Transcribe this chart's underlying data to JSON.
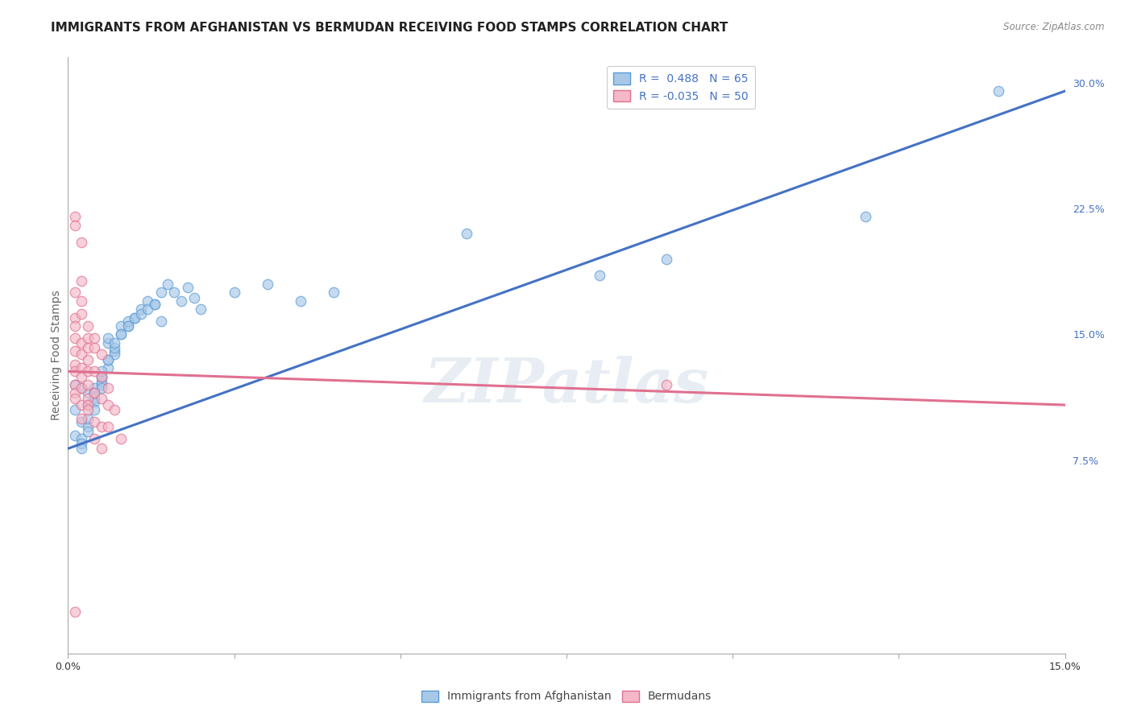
{
  "title": "IMMIGRANTS FROM AFGHANISTAN VS BERMUDAN RECEIVING FOOD STAMPS CORRELATION CHART",
  "source": "Source: ZipAtlas.com",
  "ylabel": "Receiving Food Stamps",
  "xlim": [
    0.0,
    0.15
  ],
  "ylim": [
    -0.04,
    0.315
  ],
  "legend_entries": [
    {
      "label": "R =  0.488   N = 65",
      "facecolor": "#a8c8e8",
      "edgecolor": "#5b9bd5"
    },
    {
      "label": "R = -0.035   N = 50",
      "facecolor": "#f4b8c8",
      "edgecolor": "#e07090"
    }
  ],
  "afghanistan_x": [
    0.001,
    0.002,
    0.001,
    0.003,
    0.002,
    0.004,
    0.001,
    0.003,
    0.002,
    0.005,
    0.003,
    0.004,
    0.002,
    0.006,
    0.004,
    0.003,
    0.005,
    0.002,
    0.007,
    0.004,
    0.005,
    0.003,
    0.006,
    0.004,
    0.008,
    0.005,
    0.006,
    0.007,
    0.004,
    0.009,
    0.005,
    0.006,
    0.01,
    0.007,
    0.008,
    0.005,
    0.011,
    0.006,
    0.009,
    0.007,
    0.012,
    0.008,
    0.013,
    0.009,
    0.01,
    0.014,
    0.011,
    0.015,
    0.012,
    0.016,
    0.013,
    0.017,
    0.018,
    0.014,
    0.019,
    0.02,
    0.025,
    0.03,
    0.035,
    0.04,
    0.06,
    0.08,
    0.09,
    0.12,
    0.14
  ],
  "afghanistan_y": [
    0.12,
    0.118,
    0.105,
    0.115,
    0.098,
    0.112,
    0.09,
    0.095,
    0.088,
    0.125,
    0.108,
    0.115,
    0.085,
    0.13,
    0.118,
    0.1,
    0.122,
    0.082,
    0.14,
    0.11,
    0.12,
    0.092,
    0.135,
    0.105,
    0.15,
    0.125,
    0.145,
    0.138,
    0.115,
    0.155,
    0.128,
    0.148,
    0.16,
    0.142,
    0.155,
    0.118,
    0.165,
    0.135,
    0.158,
    0.145,
    0.17,
    0.15,
    0.168,
    0.155,
    0.16,
    0.175,
    0.162,
    0.18,
    0.165,
    0.175,
    0.168,
    0.17,
    0.178,
    0.158,
    0.172,
    0.165,
    0.175,
    0.18,
    0.17,
    0.175,
    0.21,
    0.185,
    0.195,
    0.22,
    0.295
  ],
  "bermuda_x": [
    0.001,
    0.001,
    0.001,
    0.001,
    0.001,
    0.002,
    0.001,
    0.002,
    0.001,
    0.002,
    0.001,
    0.002,
    0.003,
    0.001,
    0.002,
    0.003,
    0.001,
    0.002,
    0.003,
    0.002,
    0.001,
    0.003,
    0.002,
    0.004,
    0.002,
    0.003,
    0.001,
    0.004,
    0.002,
    0.003,
    0.005,
    0.003,
    0.004,
    0.002,
    0.005,
    0.003,
    0.006,
    0.004,
    0.003,
    0.005,
    0.004,
    0.006,
    0.005,
    0.007,
    0.004,
    0.006,
    0.005,
    0.008,
    0.09,
    0.001
  ],
  "bermuda_y": [
    0.22,
    0.215,
    0.175,
    0.16,
    0.155,
    0.205,
    0.148,
    0.182,
    0.14,
    0.17,
    0.132,
    0.162,
    0.155,
    0.128,
    0.145,
    0.148,
    0.12,
    0.138,
    0.142,
    0.13,
    0.115,
    0.135,
    0.125,
    0.148,
    0.118,
    0.128,
    0.112,
    0.142,
    0.108,
    0.12,
    0.138,
    0.112,
    0.128,
    0.1,
    0.125,
    0.108,
    0.118,
    0.115,
    0.105,
    0.112,
    0.098,
    0.108,
    0.095,
    0.105,
    0.088,
    0.095,
    0.082,
    0.088,
    0.12,
    -0.015
  ],
  "afg_line_x": [
    0.0,
    0.15
  ],
  "afg_line_y": [
    0.082,
    0.295
  ],
  "berm_line_x": [
    0.0,
    0.15
  ],
  "berm_line_y": [
    0.128,
    0.108
  ],
  "afg_line_color": "#4472c4",
  "berm_line_color": "#e07090",
  "afg_face": "#a8c8e8",
  "afg_edge": "#5b9bd5",
  "berm_face": "#f4b8c8",
  "berm_edge": "#e07090",
  "watermark": "ZIPatlas",
  "bg_color": "#ffffff",
  "grid_color": "#cccccc",
  "title_fontsize": 11,
  "ylabel_fontsize": 10,
  "tick_fontsize": 9,
  "legend_fontsize": 10,
  "scatter_size": 80,
  "scatter_alpha": 0.65,
  "x_ticks": [
    0.0,
    0.025,
    0.05,
    0.075,
    0.1,
    0.125,
    0.15
  ],
  "x_tick_labels": [
    "0.0%",
    "",
    "",
    "",
    "",
    "",
    "15.0%"
  ],
  "y_ticks_right": [
    0.075,
    0.15,
    0.225,
    0.3
  ],
  "y_tick_right_labels": [
    "7.5%",
    "15.0%",
    "22.5%",
    "30.0%"
  ],
  "legend_text_color": "#4472c4"
}
